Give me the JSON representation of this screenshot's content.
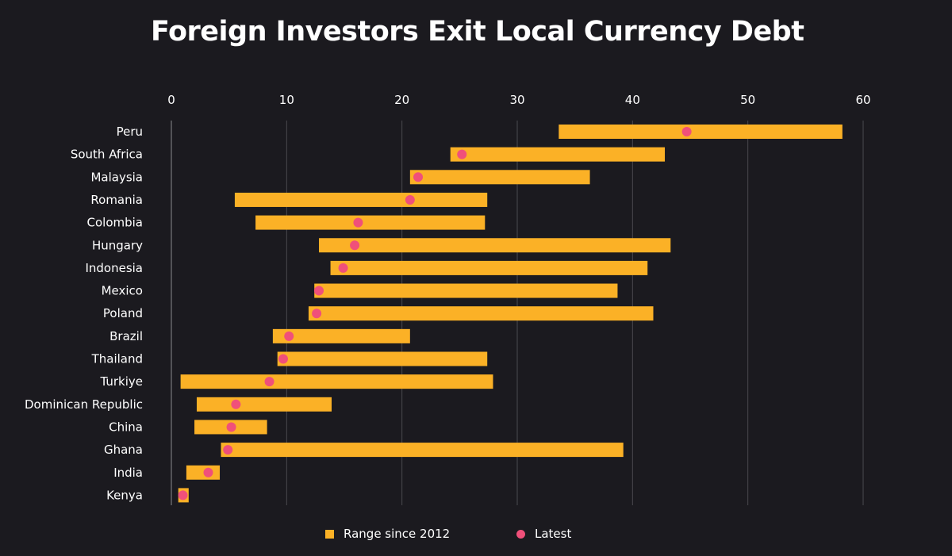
{
  "title": "Foreign Investors Exit Local Currency Debt",
  "legend": {
    "range_label": "Range since 2012",
    "latest_label": "Latest"
  },
  "colors": {
    "background": "#1b1a1f",
    "range": "#fbb126",
    "latest": "#f0507a",
    "gridline": "#4a494f",
    "text": "#ffffff"
  },
  "chart_data": {
    "type": "bar",
    "subtype": "range-dot",
    "title": "Foreign Investors Exit Local Currency Debt",
    "xlim": [
      0,
      60
    ],
    "x_ticks": [
      0,
      10,
      20,
      30,
      40,
      50,
      60
    ],
    "x_axis_position": "top",
    "grid": true,
    "legend_position": "bottom-center",
    "categories": [
      "Peru",
      "South Africa",
      "Malaysia",
      "Romania",
      "Colombia",
      "Hungary",
      "Indonesia",
      "Mexico",
      "Poland",
      "Brazil",
      "Thailand",
      "Turkiye",
      "Dominican Republic",
      "China",
      "Ghana",
      "India",
      "Kenya"
    ],
    "series": [
      {
        "name": "Range since 2012",
        "kind": "range",
        "low": [
          33.6,
          24.2,
          20.7,
          5.5,
          7.3,
          12.8,
          13.8,
          12.4,
          11.9,
          8.8,
          9.2,
          0.8,
          2.2,
          2.0,
          4.3,
          1.3,
          0.6
        ],
        "high": [
          58.2,
          42.8,
          36.3,
          27.4,
          27.2,
          43.3,
          41.3,
          38.7,
          41.8,
          20.7,
          27.4,
          27.9,
          13.9,
          8.3,
          39.2,
          4.2,
          1.5
        ]
      },
      {
        "name": "Latest",
        "kind": "point",
        "values": [
          44.7,
          25.2,
          21.4,
          20.7,
          16.2,
          15.9,
          14.9,
          12.8,
          12.6,
          10.2,
          9.7,
          8.5,
          5.6,
          5.2,
          4.9,
          3.2,
          1.0
        ]
      }
    ]
  }
}
